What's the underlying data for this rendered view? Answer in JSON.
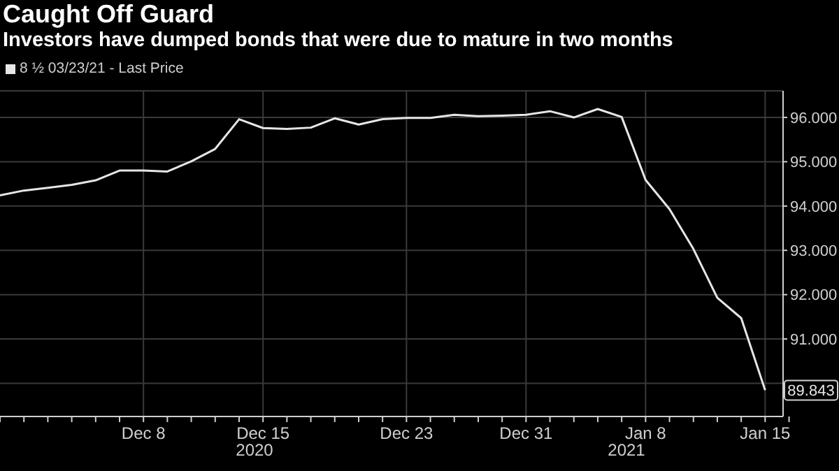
{
  "chart_data": {
    "type": "line",
    "title": "Caught Off Guard",
    "subtitle": "Investors have dumped bonds that were due to mature in two months",
    "categories": [
      null,
      null,
      null,
      null,
      null,
      null,
      "Dec 8",
      null,
      null,
      null,
      null,
      "Dec 15",
      null,
      null,
      null,
      null,
      null,
      "Dec 23",
      null,
      null,
      null,
      null,
      "Dec 31",
      null,
      null,
      null,
      null,
      "Jan 8",
      null,
      null,
      null,
      null,
      "Jan 15",
      null
    ],
    "series": [
      {
        "name": "8 ½ 03/23/21 - Last Price",
        "color": "#e6e6e6",
        "values": [
          94.24,
          94.35,
          94.41,
          94.48,
          94.58,
          94.8,
          94.8,
          94.78,
          95.01,
          95.29,
          95.96,
          95.76,
          95.74,
          95.77,
          95.98,
          95.84,
          95.96,
          95.99,
          95.99,
          96.06,
          96.03,
          96.04,
          96.06,
          96.14,
          96.0,
          96.19,
          96.01,
          94.59,
          93.93,
          93.03,
          91.93,
          91.47,
          89.843,
          null
        ],
        "value_labels": [
          null,
          null,
          null,
          null,
          null,
          null,
          null,
          null,
          null,
          null,
          null,
          null,
          null,
          null,
          null,
          null,
          null,
          null,
          null,
          null,
          null,
          null,
          null,
          null,
          null,
          null,
          null,
          null,
          null,
          null,
          null,
          null,
          "89.843",
          null
        ]
      }
    ],
    "annotations": [
      "2020",
      "2021"
    ],
    "ylim": [
      89.25,
      96.6
    ],
    "yticks": [
      {
        "value": 90,
        "label": null
      },
      {
        "value": 91,
        "label": "91.000"
      },
      {
        "value": 92,
        "label": "92.000"
      },
      {
        "value": 93,
        "label": "93.000"
      },
      {
        "value": 94,
        "label": "94.000"
      },
      {
        "value": 95,
        "label": "95.000"
      },
      {
        "value": 96,
        "label": "96.000"
      }
    ],
    "grid": true,
    "legend": "top left",
    "marker": "none",
    "line_style": "solid"
  }
}
